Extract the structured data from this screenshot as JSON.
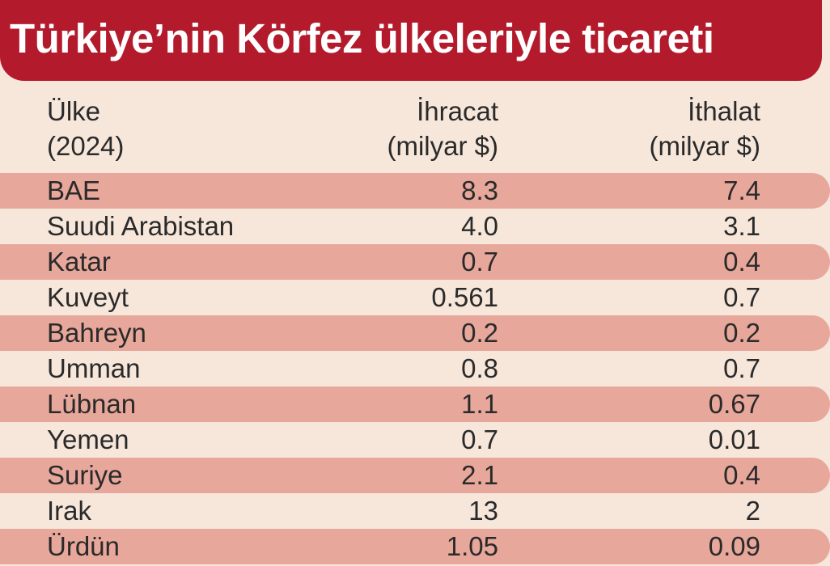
{
  "chart_data": {
    "type": "table",
    "title": "Türkiye’nin Körfez ülkeleriyle ticareti",
    "columns": [
      {
        "line1": "Ülke",
        "line2": "(2024)"
      },
      {
        "line1": "İhracat",
        "line2": "(milyar $)"
      },
      {
        "line1": "İthalat",
        "line2": "(milyar $)"
      }
    ],
    "rows": [
      {
        "country": "BAE",
        "export": "8.3",
        "import": "7.4"
      },
      {
        "country": "Suudi Arabistan",
        "export": "4.0",
        "import": "3.1"
      },
      {
        "country": "Katar",
        "export": "0.7",
        "import": "0.4"
      },
      {
        "country": "Kuveyt",
        "export": "0.561",
        "import": "0.7"
      },
      {
        "country": "Bahreyn",
        "export": "0.2",
        "import": "0.2"
      },
      {
        "country": "Umman",
        "export": "0.8",
        "import": "0.7"
      },
      {
        "country": "Lübnan",
        "export": "1.1",
        "import": "0.67"
      },
      {
        "country": "Yemen",
        "export": "0.7",
        "import": "0.01"
      },
      {
        "country": "Suriye",
        "export": "2.1",
        "import": "0.4"
      },
      {
        "country": "Irak",
        "export": "13",
        "import": "2"
      },
      {
        "country": "Ürdün",
        "export": "1.05",
        "import": "0.09"
      }
    ],
    "colors": {
      "title_background": "#b31b2c",
      "title_text": "#ffffff",
      "background": "#f7e7db",
      "row_shade": "#e8a79b"
    }
  }
}
